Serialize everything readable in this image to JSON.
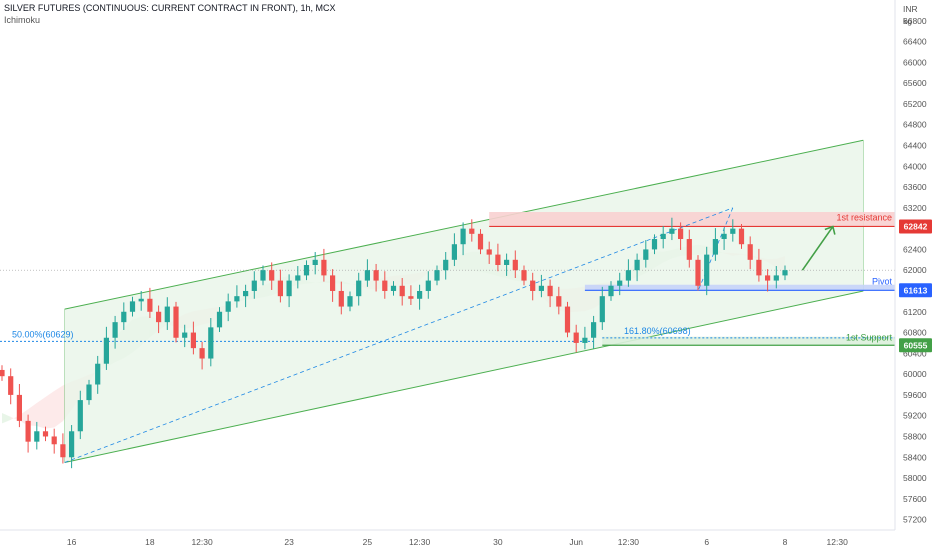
{
  "header": {
    "title": "SILVER FUTURES (CONTINUOUS: CURRENT CONTRACT IN FRONT), 1h, MCX",
    "indicator": "Ichimoku",
    "unit_top": "INR",
    "unit_bottom": "kg"
  },
  "colors": {
    "up": "#26a69a",
    "down": "#ef5350",
    "channel": "#4caf50",
    "channel_fill": "#e8f5e9",
    "resistance": "#e53935",
    "resistance_fill": "#f8d0d0",
    "pivot": "#2962ff",
    "pivot_fill": "#c5d3f8",
    "support": "#43a047",
    "fib": "#1e88e5"
  },
  "chart_data": {
    "type": "candlestick",
    "y_range": [
      57000,
      67200
    ],
    "y_ticks": [
      57200,
      57600,
      58000,
      58400,
      58800,
      59200,
      59600,
      60000,
      60400,
      60800,
      61200,
      61600,
      62000,
      62400,
      62800,
      63200,
      63600,
      64000,
      64400,
      64800,
      65200,
      65600,
      66000,
      66400,
      66800
    ],
    "x_labels": [
      {
        "label": "16",
        "i": 8
      },
      {
        "label": "18",
        "i": 17
      },
      {
        "label": "12:30",
        "i": 23
      },
      {
        "label": "23",
        "i": 33
      },
      {
        "label": "25",
        "i": 42
      },
      {
        "label": "12:30",
        "i": 48
      },
      {
        "label": "30",
        "i": 57
      },
      {
        "label": "Jun",
        "i": 66
      },
      {
        "label": "12:30",
        "i": 72
      },
      {
        "label": "6",
        "i": 81
      },
      {
        "label": "8",
        "i": 90
      },
      {
        "label": "12:30",
        "i": 96
      }
    ],
    "levels": [
      {
        "name": "1st resistance",
        "value": 62842
      },
      {
        "name": "Pivot",
        "value": 61613
      },
      {
        "name": "1st Support",
        "value": 60555
      }
    ],
    "fib_labels": [
      {
        "text": "50.00%(60629)",
        "value": 60629
      },
      {
        "text": "161.80%(60698)",
        "value": 60698
      }
    ],
    "closes": [
      59960,
      59600,
      59100,
      58700,
      58900,
      58800,
      58650,
      58400,
      58900,
      59500,
      59800,
      60200,
      60700,
      61000,
      61200,
      61400,
      61450,
      61200,
      61000,
      61300,
      60700,
      60800,
      60500,
      60300,
      60900,
      61200,
      61400,
      61500,
      61600,
      61800,
      62000,
      61800,
      61500,
      61800,
      61900,
      62100,
      62200,
      61900,
      61600,
      61300,
      61500,
      61800,
      62000,
      61800,
      61600,
      61700,
      61500,
      61450,
      61600,
      61800,
      62000,
      62200,
      62500,
      62800,
      62700,
      62400,
      62300,
      62100,
      62200,
      62000,
      61800,
      61600,
      61700,
      61500,
      61300,
      60800,
      60600,
      60700,
      61000,
      61500,
      61700,
      61800,
      62000,
      62200,
      62400,
      62600,
      62700,
      62800,
      62600,
      62200,
      61700,
      62300,
      62600,
      62700,
      62800,
      62500,
      62200,
      61900,
      61800,
      61900,
      62000
    ]
  }
}
